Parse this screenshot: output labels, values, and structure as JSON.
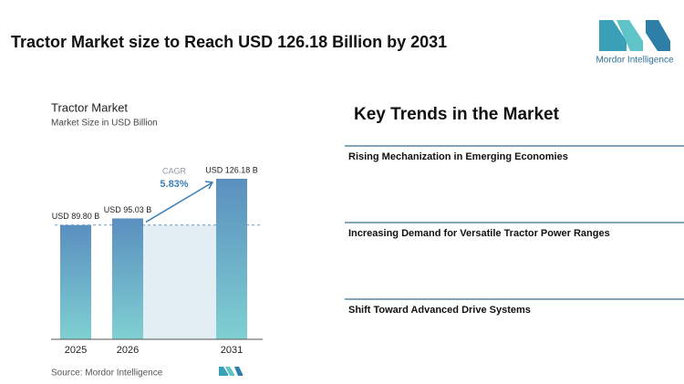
{
  "header": {
    "title": "Tractor Market size to Reach USD 126.18 Billion by 2031",
    "brand": "Mordor Intelligence"
  },
  "chart_data": {
    "type": "bar",
    "title": "Tractor Market",
    "subtitle": "Market Size in USD Billion",
    "categories": [
      "2025",
      "2026",
      "2031"
    ],
    "values": [
      89.8,
      95.03,
      126.18
    ],
    "value_labels": [
      "USD 89.80 B",
      "USD 95.03 B",
      "USD 126.18 B"
    ],
    "annotations": {
      "cagr_label": "CAGR",
      "cagr_value": "5.83%"
    },
    "colors": [
      "#5a8fbf",
      "#7fd0d2"
    ],
    "source": "Source: Mordor Intelligence"
  },
  "key_trends": {
    "title": "Key Trends in the Market",
    "items": [
      "Rising Mechanization in Emerging Economies",
      "Increasing Demand for Versatile Tractor Power Ranges",
      "Shift Toward Advanced Drive Systems"
    ]
  }
}
